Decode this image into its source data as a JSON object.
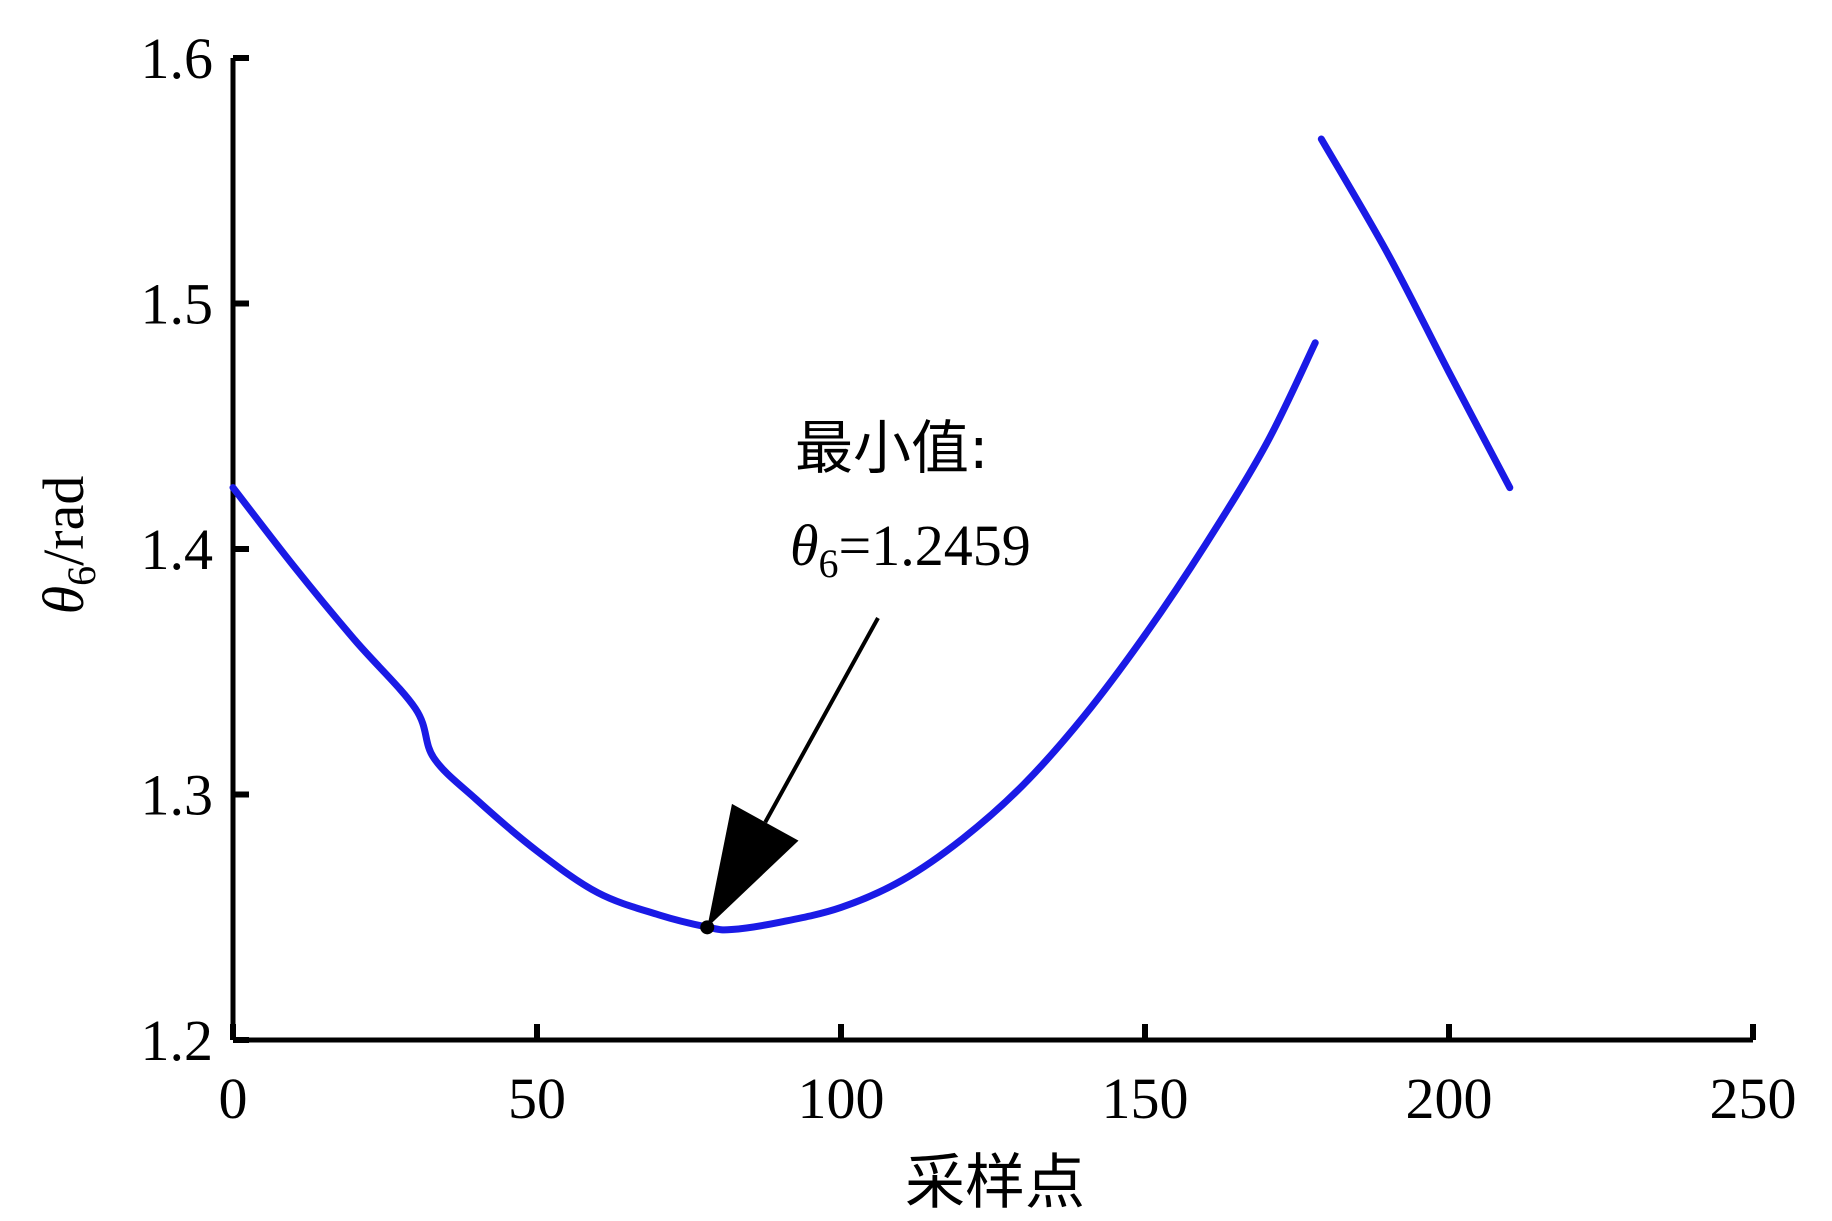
{
  "chart_data": {
    "type": "line",
    "title": "",
    "xlabel": "采样点",
    "ylabel": "θ6/rad",
    "ylabel_parts": {
      "symbol": "θ",
      "subscript": "6",
      "unit": "/rad"
    },
    "xlim": [
      0,
      250
    ],
    "ylim": [
      1.2,
      1.6
    ],
    "xticks": [
      "0",
      "50",
      "100",
      "150",
      "200",
      "250"
    ],
    "yticks": [
      "1.2",
      "1.3",
      "1.4",
      "1.5",
      "1.6"
    ],
    "grid": false,
    "line_color": "#1a1ae6",
    "series": [
      {
        "segments": [
          {
            "x": [
              0,
              10,
              20,
              30,
              33,
              40,
              50,
              60,
              70,
              78,
              82,
              90,
              100,
              110,
              120,
              130,
              140,
              150,
              160,
              170,
              178
            ],
            "y": [
              1.425,
              1.393,
              1.363,
              1.335,
              1.315,
              1.298,
              1.277,
              1.26,
              1.251,
              1.246,
              1.245,
              1.248,
              1.254,
              1.265,
              1.282,
              1.304,
              1.332,
              1.365,
              1.402,
              1.443,
              1.484
            ]
          },
          {
            "x": [
              179,
              190,
              200,
              210
            ],
            "y": [
              1.567,
              1.52,
              1.472,
              1.425
            ]
          }
        ]
      }
    ],
    "annotation": {
      "line1": "最小值:",
      "symbol": "θ",
      "subscript": "6",
      "value_text": "=1.2459",
      "point": {
        "x": 78,
        "y": 1.2459
      }
    }
  }
}
